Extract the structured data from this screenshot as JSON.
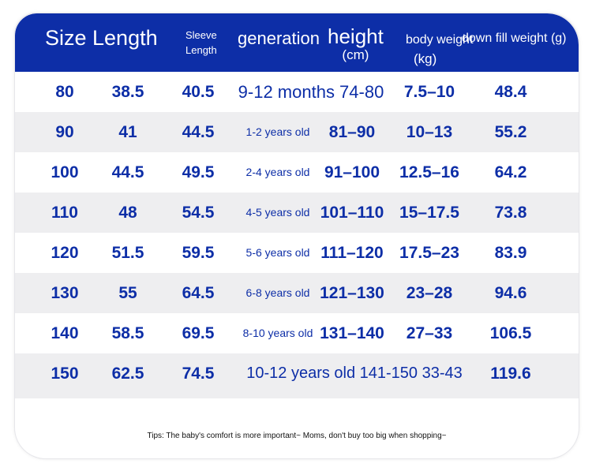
{
  "header": {
    "size_length": "Size Length",
    "sleeve_line1": "Sleeve",
    "sleeve_line2": "Length",
    "generation": "generation",
    "height": "height",
    "height_unit": "(cm)",
    "body_weight": "body weight",
    "body_weight_unit": "(kg)",
    "down_fill": "down fill weight (g)"
  },
  "rows": [
    {
      "size": "80",
      "length": "38.5",
      "sleeve": "40.5",
      "merged": "9-12 months 74-80",
      "body": "7.5–10",
      "down": "48.4"
    },
    {
      "size": "90",
      "length": "41",
      "sleeve": "44.5",
      "generation": "1-2 years old",
      "height": "81–90",
      "body": "10–13",
      "down": "55.2"
    },
    {
      "size": "100",
      "length": "44.5",
      "sleeve": "49.5",
      "generation": "2-4 years old",
      "height": "91–100",
      "body": "12.5–16",
      "down": "64.2"
    },
    {
      "size": "110",
      "length": "48",
      "sleeve": "54.5",
      "generation": "4-5 years old",
      "height": "101–110",
      "body": "15–17.5",
      "down": "73.8"
    },
    {
      "size": "120",
      "length": "51.5",
      "sleeve": "59.5",
      "generation": "5-6 years old",
      "height": "111–120",
      "body": "17.5–23",
      "down": "83.9"
    },
    {
      "size": "130",
      "length": "55",
      "sleeve": "64.5",
      "generation": "6-8 years old",
      "height": "121–130",
      "body": "23–28",
      "down": "94.6"
    },
    {
      "size": "140",
      "length": "58.5",
      "sleeve": "69.5",
      "generation": "8-10 years old",
      "height": "131–140",
      "body": "27–33",
      "down": "106.5"
    },
    {
      "size": "150",
      "length": "62.5",
      "sleeve": "74.5",
      "merged": "10-12 years old 141-150 33-43",
      "down": "119.6"
    }
  ],
  "tips": "Tips: The baby's comfort is more important~ Moms, don't buy too big when shopping~",
  "colors": {
    "accent": "#0d2ea7",
    "stripe": "#eeeef0"
  }
}
